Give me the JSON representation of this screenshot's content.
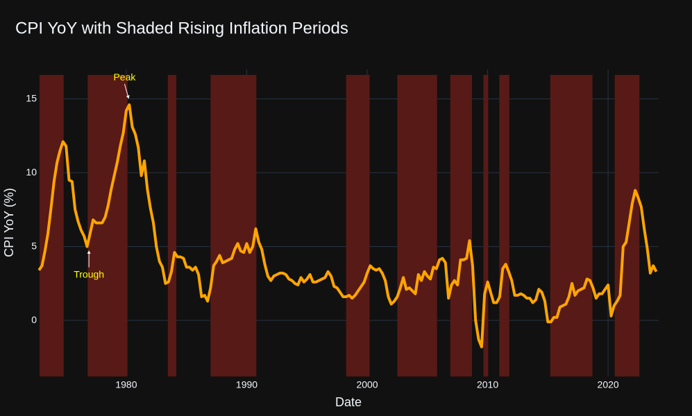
{
  "chart_data": {
    "type": "line",
    "title": "CPI YoY with Shaded Rising Inflation Periods",
    "x_label": "Date",
    "y_label": "CPI YoY (%)",
    "color": "#ffa500",
    "shade_color": "#581a17",
    "background": "#111111",
    "grid": true,
    "xlim": [
      1972.8,
      2024.2
    ],
    "xticks": [
      1980,
      1990,
      2000,
      2010,
      2020
    ],
    "ylim": [
      -3.8,
      17.0
    ],
    "yticks": [
      0,
      5,
      10,
      15
    ],
    "shaded_periods": [
      [
        1972.8,
        1974.8
      ],
      [
        1976.8,
        1980.1
      ],
      [
        1983.45,
        1984.15
      ],
      [
        1987.0,
        1990.8
      ],
      [
        1998.25,
        2000.2
      ],
      [
        2002.5,
        2005.8
      ],
      [
        2006.9,
        2008.7
      ],
      [
        2009.65,
        2010.05
      ],
      [
        2010.97,
        2011.8
      ],
      [
        2015.2,
        2018.7
      ],
      [
        2020.55,
        2022.6
      ]
    ],
    "annotations": [
      {
        "text": "Peak",
        "x": 1980.2,
        "y": 14.6,
        "position": "above"
      },
      {
        "text": "Trough",
        "x": 1976.9,
        "y": 5.0,
        "position": "below"
      }
    ],
    "x": [
      1972.75,
      1973,
      1973.25,
      1973.5,
      1973.75,
      1974,
      1974.25,
      1974.5,
      1974.75,
      1975,
      1975.25,
      1975.5,
      1975.75,
      1976,
      1976.25,
      1976.5,
      1976.75,
      1977,
      1977.25,
      1977.5,
      1977.75,
      1978,
      1978.25,
      1978.5,
      1978.75,
      1979,
      1979.25,
      1979.5,
      1979.75,
      1980,
      1980.25,
      1980.5,
      1980.75,
      1981,
      1981.25,
      1981.5,
      1981.75,
      1982,
      1982.25,
      1982.5,
      1982.75,
      1983,
      1983.25,
      1983.5,
      1983.75,
      1984,
      1984.25,
      1984.5,
      1984.75,
      1985,
      1985.25,
      1985.5,
      1985.75,
      1986,
      1986.25,
      1986.5,
      1986.75,
      1987,
      1987.25,
      1987.5,
      1987.75,
      1988,
      1988.25,
      1988.5,
      1988.75,
      1989,
      1989.25,
      1989.5,
      1989.75,
      1990,
      1990.25,
      1990.5,
      1990.75,
      1991,
      1991.25,
      1991.5,
      1991.75,
      1992,
      1992.25,
      1992.5,
      1992.75,
      1993,
      1993.25,
      1993.5,
      1993.75,
      1994,
      1994.25,
      1994.5,
      1994.75,
      1995,
      1995.25,
      1995.5,
      1995.75,
      1996,
      1996.25,
      1996.5,
      1996.75,
      1997,
      1997.25,
      1997.5,
      1997.75,
      1998,
      1998.25,
      1998.5,
      1998.75,
      1999,
      1999.25,
      1999.5,
      1999.75,
      2000,
      2000.25,
      2000.5,
      2000.75,
      2001,
      2001.25,
      2001.5,
      2001.75,
      2002,
      2002.25,
      2002.5,
      2002.75,
      2003,
      2003.25,
      2003.5,
      2003.75,
      2004,
      2004.25,
      2004.5,
      2004.75,
      2005,
      2005.25,
      2005.5,
      2005.75,
      2006,
      2006.25,
      2006.5,
      2006.75,
      2007,
      2007.25,
      2007.5,
      2007.75,
      2008,
      2008.25,
      2008.5,
      2008.75,
      2009,
      2009.25,
      2009.5,
      2009.75,
      2010,
      2010.25,
      2010.5,
      2010.75,
      2011,
      2011.25,
      2011.5,
      2011.75,
      2012,
      2012.25,
      2012.5,
      2012.75,
      2013,
      2013.25,
      2013.5,
      2013.75,
      2014,
      2014.25,
      2014.5,
      2014.75,
      2015,
      2015.25,
      2015.5,
      2015.75,
      2016,
      2016.25,
      2016.5,
      2016.75,
      2017,
      2017.25,
      2017.5,
      2017.75,
      2018,
      2018.25,
      2018.5,
      2018.75,
      2019,
      2019.25,
      2019.5,
      2019.75,
      2020,
      2020.25,
      2020.5,
      2020.75,
      2021,
      2021.25,
      2021.5,
      2021.75,
      2022,
      2022.25,
      2022.5,
      2022.75,
      2023,
      2023.25,
      2023.5,
      2023.75,
      2024
    ],
    "values": [
      3.4,
      3.7,
      4.7,
      5.9,
      7.6,
      9.4,
      10.7,
      11.5,
      12.1,
      11.8,
      9.5,
      9.4,
      7.5,
      6.7,
      6.1,
      5.7,
      5.0,
      5.9,
      6.8,
      6.6,
      6.6,
      6.6,
      7.0,
      7.8,
      8.9,
      9.8,
      10.7,
      11.8,
      12.7,
      14.2,
      14.6,
      13.1,
      12.6,
      11.7,
      9.8,
      10.8,
      8.9,
      7.6,
      6.6,
      5.0,
      4.0,
      3.6,
      2.5,
      2.6,
      3.3,
      4.6,
      4.3,
      4.3,
      4.2,
      3.6,
      3.6,
      3.4,
      3.6,
      3.1,
      1.6,
      1.7,
      1.3,
      2.2,
      3.7,
      4.0,
      4.4,
      3.9,
      4.0,
      4.1,
      4.2,
      4.8,
      5.2,
      4.7,
      4.6,
      5.2,
      4.6,
      5.0,
      6.2,
      5.3,
      4.8,
      3.8,
      3.0,
      2.7,
      3.0,
      3.1,
      3.2,
      3.2,
      3.1,
      2.8,
      2.7,
      2.5,
      2.4,
      2.9,
      2.6,
      2.8,
      3.1,
      2.6,
      2.6,
      2.7,
      2.8,
      2.9,
      3.3,
      3.0,
      2.3,
      2.2,
      1.9,
      1.6,
      1.6,
      1.7,
      1.5,
      1.7,
      2.0,
      2.3,
      2.6,
      3.2,
      3.7,
      3.5,
      3.4,
      3.5,
      3.2,
      2.7,
      1.6,
      1.1,
      1.3,
      1.6,
      2.2,
      2.9,
      2.1,
      2.2,
      2.0,
      1.8,
      3.1,
      2.7,
      3.3,
      3.0,
      2.8,
      3.6,
      3.5,
      4.1,
      4.2,
      3.9,
      1.5,
      2.4,
      2.7,
      2.4,
      4.1,
      4.1,
      4.2,
      5.4,
      3.7,
      0.0,
      -1.3,
      -1.8,
      1.8,
      2.6,
      1.9,
      1.2,
      1.2,
      1.6,
      3.5,
      3.8,
      3.3,
      2.7,
      1.7,
      1.7,
      1.8,
      1.7,
      1.5,
      1.5,
      1.2,
      1.4,
      2.1,
      1.9,
      1.3,
      -0.1,
      -0.1,
      0.2,
      0.2,
      0.9,
      1.0,
      1.1,
      1.6,
      2.5,
      1.7,
      2.0,
      2.1,
      2.2,
      2.8,
      2.7,
      2.2,
      1.5,
      1.8,
      1.8,
      2.1,
      2.4,
      0.3,
      1.0,
      1.3,
      1.7,
      5.0,
      5.3,
      6.6,
      7.9,
      8.8,
      8.3,
      7.7,
      6.2,
      4.9,
      3.2,
      3.7,
      3.3
    ]
  }
}
